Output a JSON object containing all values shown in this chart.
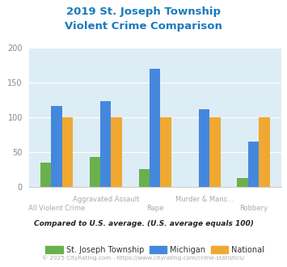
{
  "title_line1": "2019 St. Joseph Township",
  "title_line2": "Violent Crime Comparison",
  "title_color": "#1a7abf",
  "categories": [
    "All Violent Crime",
    "Aggravated Assault",
    "Rape",
    "Murder & Mans...",
    "Robbery"
  ],
  "cat_labels_upper": [
    "",
    "Aggravated Assault",
    "",
    "Murder & Mans...",
    ""
  ],
  "cat_labels_lower": [
    "All Violent Crime",
    "",
    "Rape",
    "",
    "Robbery"
  ],
  "local_values": [
    35,
    43,
    26,
    0,
    13
  ],
  "michigan_values": [
    116,
    123,
    170,
    112,
    65
  ],
  "national_values": [
    100,
    100,
    100,
    100,
    100
  ],
  "local_color": "#6ab04c",
  "michigan_color": "#4488dd",
  "national_color": "#f0a830",
  "bg_color": "#ddedf5",
  "legend_local": "St. Joseph Township",
  "legend_michigan": "Michigan",
  "legend_national": "National",
  "ylabel_note": "Compared to U.S. average. (U.S. average equals 100)",
  "footer": "© 2025 CityRating.com - https://www.cityrating.com/crime-statistics/",
  "ylim": [
    0,
    200
  ],
  "yticks": [
    0,
    50,
    100,
    150,
    200
  ],
  "bar_width": 0.22
}
